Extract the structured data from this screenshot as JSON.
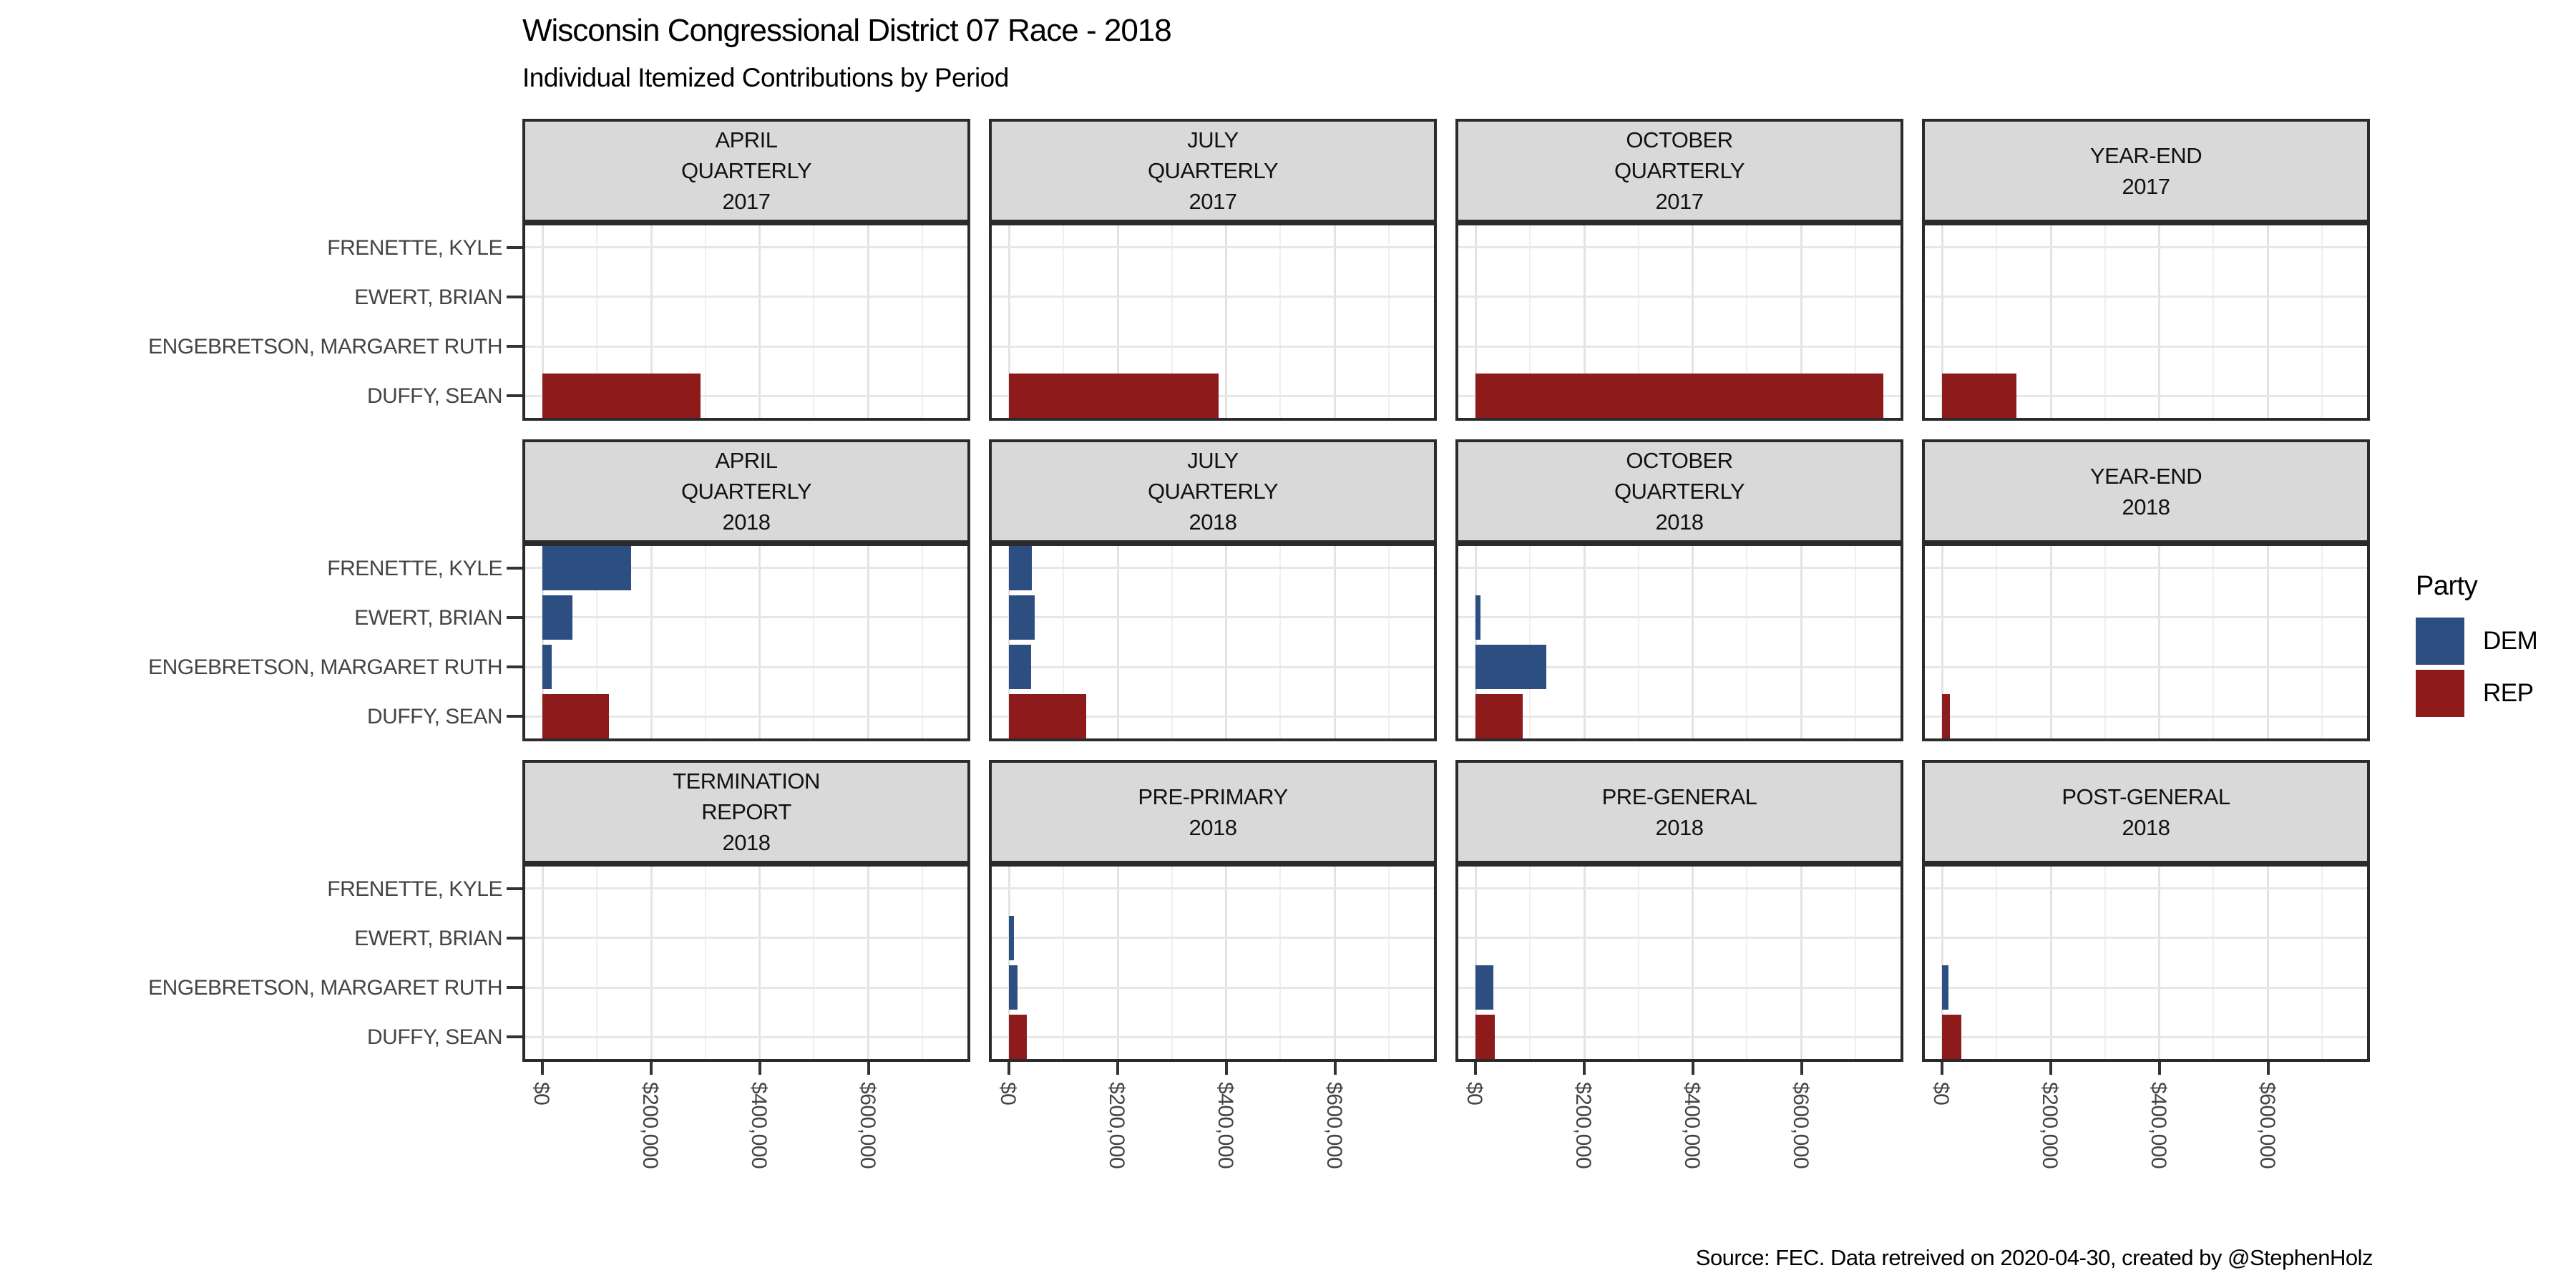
{
  "title": "Wisconsin Congressional District 07 Race - 2018",
  "subtitle": "Individual Itemized Contributions by Period",
  "caption": "Source: FEC. Data retreived on 2020-04-30, created by @StephenHolz",
  "legend": {
    "title": "Party",
    "entries": [
      {
        "label": "DEM",
        "color": "#2d4e81"
      },
      {
        "label": "REP",
        "color": "#8e1b1b"
      }
    ]
  },
  "chart_data": {
    "type": "bar",
    "orientation": "horizontal",
    "title": "Wisconsin Congressional District 07 Race - 2018",
    "subtitle": "Individual Itemized Contributions by Period",
    "caption": "Source: FEC. Data retreived on 2020-04-30, created by @StephenHolz",
    "unit": "USD",
    "grid": true,
    "legend_position": "right",
    "xlim": [
      -37500,
      787500
    ],
    "x_tick_values": [
      0,
      200000,
      400000,
      600000
    ],
    "x_tick_labels": [
      "$0",
      "$200,000",
      "$400,000",
      "$600,000"
    ],
    "x_minor_step": 100000,
    "categories": [
      "FRENETTE, KYLE",
      "EWERT, BRIAN",
      "ENGEBRETSON, MARGARET RUTH",
      "DUFFY, SEAN"
    ],
    "parties": [
      "DEM",
      "DEM",
      "DEM",
      "REP"
    ],
    "party_colors": {
      "DEM": "#2d4e81",
      "REP": "#8e1b1b"
    },
    "facet_grid": {
      "rows": 3,
      "cols": 4
    },
    "facets": [
      {
        "strip_lines": [
          "APRIL",
          "QUARTERLY",
          "2017"
        ],
        "values": [
          0,
          0,
          0,
          290000
        ]
      },
      {
        "strip_lines": [
          "JULY",
          "QUARTERLY",
          "2017"
        ],
        "values": [
          0,
          0,
          0,
          385000
        ]
      },
      {
        "strip_lines": [
          "OCTOBER",
          "QUARTERLY",
          "2017"
        ],
        "values": [
          0,
          0,
          0,
          750000
        ]
      },
      {
        "strip_lines": [
          "YEAR-END",
          "2017"
        ],
        "values": [
          0,
          0,
          0,
          137000
        ]
      },
      {
        "strip_lines": [
          "APRIL",
          "QUARTERLY",
          "2018"
        ],
        "values": [
          163000,
          55000,
          17000,
          122000
        ]
      },
      {
        "strip_lines": [
          "JULY",
          "QUARTERLY",
          "2018"
        ],
        "values": [
          41000,
          47000,
          40000,
          142000
        ]
      },
      {
        "strip_lines": [
          "OCTOBER",
          "QUARTERLY",
          "2018"
        ],
        "values": [
          0,
          8000,
          130000,
          87000
        ]
      },
      {
        "strip_lines": [
          "YEAR-END",
          "2018"
        ],
        "values": [
          0,
          0,
          0,
          14000
        ]
      },
      {
        "strip_lines": [
          "TERMINATION",
          "REPORT",
          "2018"
        ],
        "values": [
          0,
          0,
          0,
          0
        ]
      },
      {
        "strip_lines": [
          "PRE-PRIMARY",
          "2018"
        ],
        "values": [
          0,
          8000,
          15000,
          33000
        ]
      },
      {
        "strip_lines": [
          "PRE-GENERAL",
          "2018"
        ],
        "values": [
          0,
          0,
          32000,
          35000
        ]
      },
      {
        "strip_lines": [
          "POST-GENERAL",
          "2018"
        ],
        "values": [
          0,
          0,
          11000,
          35000
        ]
      }
    ]
  }
}
